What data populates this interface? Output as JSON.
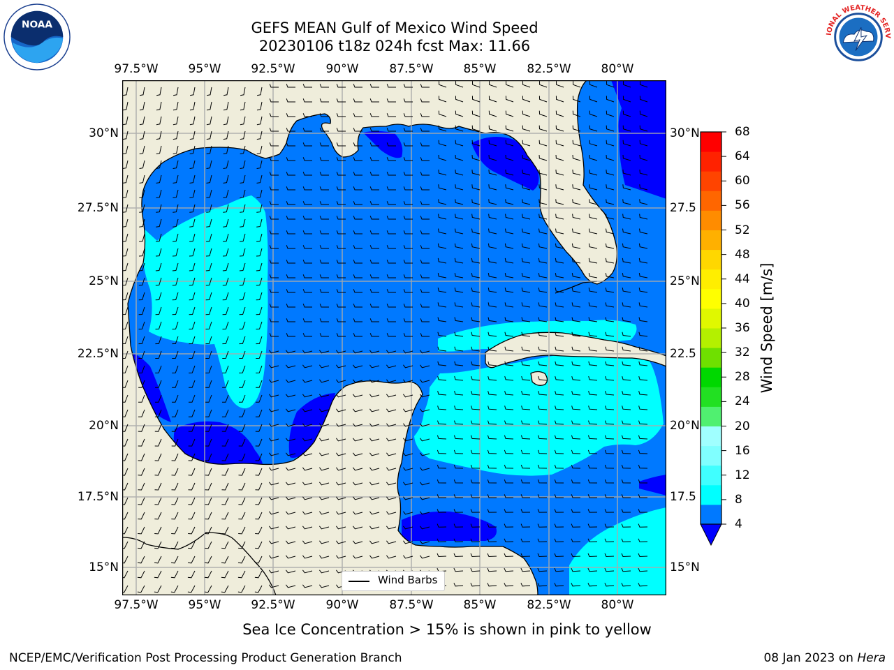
{
  "title": {
    "line1": "GEFS MEAN Gulf of Mexico Wind Speed",
    "line2": "20230106 t18z 024h fcst   Max: 11.66"
  },
  "logos": {
    "left": "NOAA",
    "right": "NATIONAL WEATHER SERVICE"
  },
  "axes": {
    "lon_ticks": [
      "97.5°W",
      "95°W",
      "92.5°W",
      "90°W",
      "87.5°W",
      "85°W",
      "82.5°W",
      "80°W"
    ],
    "lat_ticks_left": [
      "30°N",
      "27.5°N",
      "25°N",
      "22.5°N",
      "20°N",
      "17.5°N",
      "15°N"
    ],
    "lat_ticks_right": [
      "30°N",
      "27.5",
      "25°N",
      "22.5",
      "20°N",
      "17.5",
      "15°N"
    ]
  },
  "map": {
    "lon_range": [
      -98,
      -78.2
    ],
    "lat_range": [
      14,
      31.6
    ],
    "land_color": "#efeddb",
    "ocean_base_color": "#0079ff",
    "legend_label": "Wind Barbs"
  },
  "colorbar": {
    "title": "Wind Speed [m/s]",
    "labels": [
      "68",
      "64",
      "60",
      "56",
      "52",
      "48",
      "44",
      "40",
      "36",
      "32",
      "28",
      "24",
      "20",
      "16",
      "12",
      "8",
      "4"
    ],
    "colors": [
      "#0000ff",
      "#0079ff",
      "#00ffff",
      "#40ffff",
      "#80ffff",
      "#a0ffff",
      "#50f070",
      "#22e022",
      "#00d800",
      "#6fe000",
      "#b4f000",
      "#e0f800",
      "#ffff00",
      "#ffee00",
      "#ffd700",
      "#ffb000",
      "#ff8c00",
      "#ff6600",
      "#ff4400",
      "#ff2200",
      "#ff0000"
    ]
  },
  "note": "Sea Ice Concentration > 15% is shown in pink to yellow",
  "footer": {
    "left": "NCEP/EMC/Verification Post Processing Product Generation Branch",
    "right_prefix": "08 Jan 2023 on ",
    "right_machine": "Hera"
  }
}
